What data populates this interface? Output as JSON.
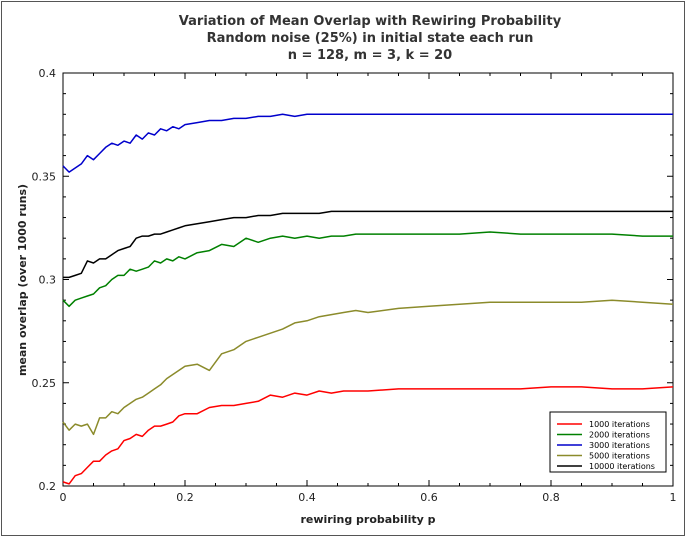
{
  "chart_data": {
    "type": "line",
    "title": [
      "Variation of Mean Overlap with Rewiring Probability",
      "Random noise (25%) in initial state each run",
      "n = 128, m = 3, k = 20"
    ],
    "xlabel": "rewiring probability p",
    "ylabel": "mean overlap (over 1000 runs)",
    "xlim": [
      0,
      1
    ],
    "ylim": [
      0.2,
      0.4
    ],
    "xticks": [
      0,
      0.2,
      0.4,
      0.6,
      0.8,
      1
    ],
    "xtick_labels": [
      "0",
      "0.2",
      "0.4",
      "0.6",
      "0.8",
      "1"
    ],
    "yticks": [
      0.2,
      0.25,
      0.3,
      0.35,
      0.4
    ],
    "ytick_labels": [
      "0.2",
      "0.25",
      "0.3",
      "0.35",
      "0.4"
    ],
    "legend_position": "bottom-right",
    "series": [
      {
        "name": "1000 iterations",
        "color": "#ff0000",
        "x": [
          0,
          0.01,
          0.02,
          0.03,
          0.04,
          0.05,
          0.06,
          0.07,
          0.08,
          0.09,
          0.1,
          0.11,
          0.12,
          0.13,
          0.14,
          0.15,
          0.16,
          0.17,
          0.18,
          0.19,
          0.2,
          0.22,
          0.24,
          0.26,
          0.28,
          0.3,
          0.32,
          0.34,
          0.36,
          0.38,
          0.4,
          0.42,
          0.44,
          0.46,
          0.48,
          0.5,
          0.55,
          0.6,
          0.65,
          0.7,
          0.75,
          0.8,
          0.85,
          0.9,
          0.95,
          1.0
        ],
        "values": [
          0.202,
          0.201,
          0.205,
          0.206,
          0.209,
          0.212,
          0.212,
          0.215,
          0.217,
          0.218,
          0.222,
          0.223,
          0.225,
          0.224,
          0.227,
          0.229,
          0.229,
          0.23,
          0.231,
          0.234,
          0.235,
          0.235,
          0.238,
          0.239,
          0.239,
          0.24,
          0.241,
          0.244,
          0.243,
          0.245,
          0.244,
          0.246,
          0.245,
          0.246,
          0.246,
          0.246,
          0.247,
          0.247,
          0.247,
          0.247,
          0.247,
          0.248,
          0.248,
          0.247,
          0.247,
          0.248
        ]
      },
      {
        "name": "2000 iterations",
        "color": "#008000",
        "x": [
          0,
          0.01,
          0.02,
          0.03,
          0.04,
          0.05,
          0.06,
          0.07,
          0.08,
          0.09,
          0.1,
          0.11,
          0.12,
          0.13,
          0.14,
          0.15,
          0.16,
          0.17,
          0.18,
          0.19,
          0.2,
          0.22,
          0.24,
          0.26,
          0.28,
          0.3,
          0.32,
          0.34,
          0.36,
          0.38,
          0.4,
          0.42,
          0.44,
          0.46,
          0.48,
          0.5,
          0.55,
          0.6,
          0.65,
          0.7,
          0.75,
          0.8,
          0.85,
          0.9,
          0.95,
          1.0
        ],
        "values": [
          0.29,
          0.287,
          0.29,
          0.291,
          0.292,
          0.293,
          0.296,
          0.297,
          0.3,
          0.302,
          0.302,
          0.305,
          0.304,
          0.305,
          0.306,
          0.309,
          0.308,
          0.31,
          0.309,
          0.311,
          0.31,
          0.313,
          0.314,
          0.317,
          0.316,
          0.32,
          0.318,
          0.32,
          0.321,
          0.32,
          0.321,
          0.32,
          0.321,
          0.321,
          0.322,
          0.322,
          0.322,
          0.322,
          0.322,
          0.323,
          0.322,
          0.322,
          0.322,
          0.322,
          0.321,
          0.321
        ]
      },
      {
        "name": "3000 iterations",
        "color": "#0000cc",
        "x": [
          0,
          0.01,
          0.02,
          0.03,
          0.04,
          0.05,
          0.06,
          0.07,
          0.08,
          0.09,
          0.1,
          0.11,
          0.12,
          0.13,
          0.14,
          0.15,
          0.16,
          0.17,
          0.18,
          0.19,
          0.2,
          0.22,
          0.24,
          0.26,
          0.28,
          0.3,
          0.32,
          0.34,
          0.36,
          0.38,
          0.4,
          0.42,
          0.44,
          0.46,
          0.48,
          0.5,
          0.55,
          0.6,
          0.65,
          0.7,
          0.75,
          0.8,
          0.85,
          0.9,
          0.95,
          1.0
        ],
        "values": [
          0.355,
          0.352,
          0.354,
          0.356,
          0.36,
          0.358,
          0.361,
          0.364,
          0.366,
          0.365,
          0.367,
          0.366,
          0.37,
          0.368,
          0.371,
          0.37,
          0.373,
          0.372,
          0.374,
          0.373,
          0.375,
          0.376,
          0.377,
          0.377,
          0.378,
          0.378,
          0.379,
          0.379,
          0.38,
          0.379,
          0.38,
          0.38,
          0.38,
          0.38,
          0.38,
          0.38,
          0.38,
          0.38,
          0.38,
          0.38,
          0.38,
          0.38,
          0.38,
          0.38,
          0.38,
          0.38
        ]
      },
      {
        "name": "5000 iterations",
        "color": "#8b8b2b",
        "x": [
          0,
          0.01,
          0.02,
          0.03,
          0.04,
          0.05,
          0.06,
          0.07,
          0.08,
          0.09,
          0.1,
          0.11,
          0.12,
          0.13,
          0.14,
          0.15,
          0.16,
          0.17,
          0.18,
          0.19,
          0.2,
          0.22,
          0.24,
          0.26,
          0.28,
          0.3,
          0.32,
          0.34,
          0.36,
          0.38,
          0.4,
          0.42,
          0.44,
          0.46,
          0.48,
          0.5,
          0.55,
          0.6,
          0.65,
          0.7,
          0.75,
          0.8,
          0.85,
          0.9,
          0.95,
          1.0
        ],
        "values": [
          0.231,
          0.227,
          0.23,
          0.229,
          0.23,
          0.225,
          0.233,
          0.233,
          0.236,
          0.235,
          0.238,
          0.24,
          0.242,
          0.243,
          0.245,
          0.247,
          0.249,
          0.252,
          0.254,
          0.256,
          0.258,
          0.259,
          0.256,
          0.264,
          0.266,
          0.27,
          0.272,
          0.274,
          0.276,
          0.279,
          0.28,
          0.282,
          0.283,
          0.284,
          0.285,
          0.284,
          0.286,
          0.287,
          0.288,
          0.289,
          0.289,
          0.289,
          0.289,
          0.29,
          0.289,
          0.288
        ]
      },
      {
        "name": "10000 iterations",
        "color": "#000000",
        "x": [
          0,
          0.01,
          0.02,
          0.03,
          0.04,
          0.05,
          0.06,
          0.07,
          0.08,
          0.09,
          0.1,
          0.11,
          0.12,
          0.13,
          0.14,
          0.15,
          0.16,
          0.17,
          0.18,
          0.19,
          0.2,
          0.22,
          0.24,
          0.26,
          0.28,
          0.3,
          0.32,
          0.34,
          0.36,
          0.38,
          0.4,
          0.42,
          0.44,
          0.46,
          0.48,
          0.5,
          0.55,
          0.6,
          0.65,
          0.7,
          0.75,
          0.8,
          0.85,
          0.9,
          0.95,
          1.0
        ],
        "values": [
          0.301,
          0.301,
          0.302,
          0.303,
          0.309,
          0.308,
          0.31,
          0.31,
          0.312,
          0.314,
          0.315,
          0.316,
          0.32,
          0.321,
          0.321,
          0.322,
          0.322,
          0.323,
          0.324,
          0.325,
          0.326,
          0.327,
          0.328,
          0.329,
          0.33,
          0.33,
          0.331,
          0.331,
          0.332,
          0.332,
          0.332,
          0.332,
          0.333,
          0.333,
          0.333,
          0.333,
          0.333,
          0.333,
          0.333,
          0.333,
          0.333,
          0.333,
          0.333,
          0.333,
          0.333,
          0.333
        ]
      }
    ]
  }
}
